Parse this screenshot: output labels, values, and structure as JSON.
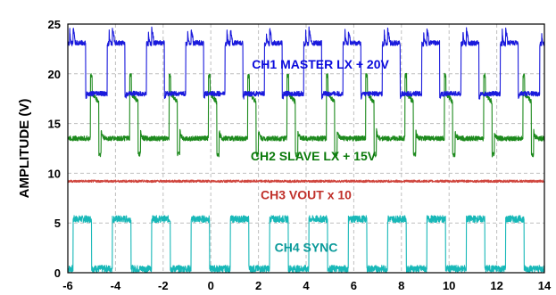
{
  "chart_data": {
    "type": "line",
    "title": "",
    "xlabel": "",
    "ylabel": "AMPLITUDE (V)",
    "xlim": [
      -6,
      14
    ],
    "ylim": [
      0,
      25
    ],
    "x_ticks": [
      -6,
      -4,
      -2,
      0,
      2,
      4,
      6,
      8,
      10,
      12,
      14
    ],
    "y_ticks": [
      0,
      5,
      10,
      15,
      20,
      25
    ],
    "grid": true,
    "legend": "none",
    "annotations": [
      {
        "text": "CH1 MASTER LX + 20V",
        "x": 4.6,
        "y": 20.5,
        "color": "#0a0adc"
      },
      {
        "text": "CH2 SLAVE LX + 15V",
        "x": 4.3,
        "y": 11.3,
        "color": "#0b7a0b"
      },
      {
        "text": "CH3 VOUT x 10",
        "x": 4.0,
        "y": 7.4,
        "color": "#c0302a"
      },
      {
        "text": "CH4 SYNC",
        "x": 4.0,
        "y": 2.1,
        "color": "#0a9a9a"
      }
    ],
    "period": 1.65,
    "series": [
      {
        "channel": "CH1",
        "color": "#1a1adc",
        "low": 18.0,
        "high": 23.0,
        "peak": 24.5
      },
      {
        "channel": "CH2",
        "color": "#1d8a1d",
        "low": 13.5,
        "high": 18.0,
        "spike_high": 19.8,
        "spike_low": 11.9
      },
      {
        "channel": "CH3",
        "color": "#d0463e",
        "level": 9.2
      },
      {
        "channel": "CH4",
        "color": "#18b8b8",
        "low": 0.4,
        "high": 5.4
      }
    ]
  }
}
